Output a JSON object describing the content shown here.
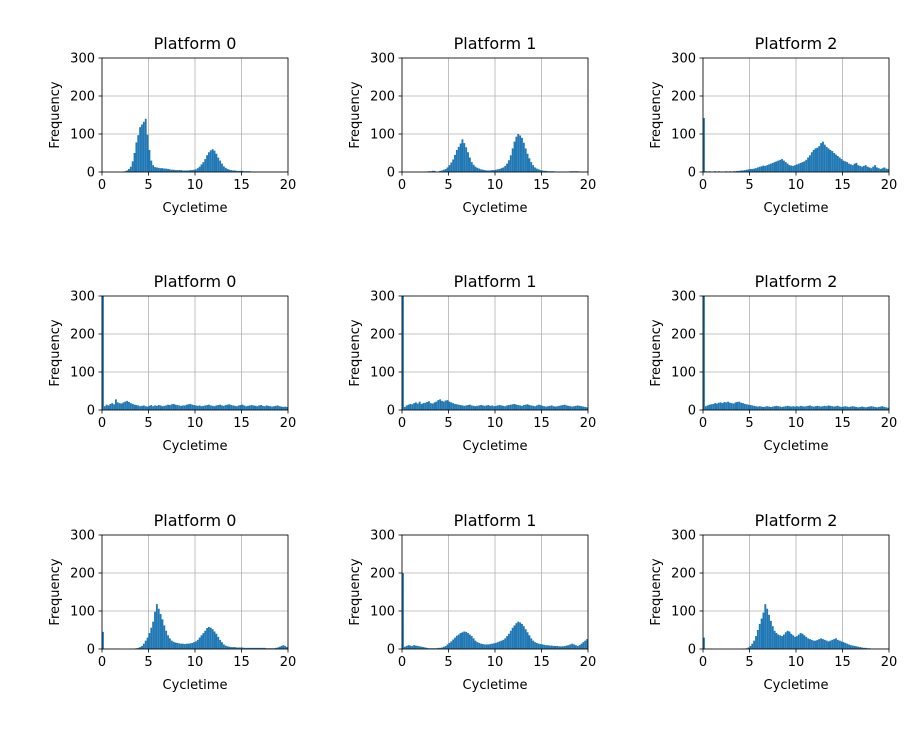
{
  "figure": {
    "rows": 3,
    "cols": 3,
    "bar_color": "#1f77b4"
  },
  "chart_data": [
    {
      "type": "bar",
      "title": "Platform 0",
      "xlabel": "Cycletime",
      "ylabel": "Frequency",
      "xlim": [
        0,
        20
      ],
      "ylim": [
        0,
        300
      ],
      "xticks": [
        0,
        5,
        10,
        15,
        20
      ],
      "yticks": [
        0,
        100,
        200,
        300
      ],
      "grid": true,
      "bin_width": 0.2,
      "values": [
        0,
        0,
        0,
        0,
        0,
        0,
        0,
        0,
        0,
        0,
        0,
        1,
        2,
        4,
        8,
        14,
        28,
        50,
        78,
        97,
        118,
        125,
        132,
        140,
        98,
        58,
        30,
        18,
        13,
        12,
        11,
        10,
        10,
        9,
        9,
        8,
        7,
        6,
        6,
        5,
        5,
        5,
        5,
        4,
        4,
        4,
        4,
        5,
        5,
        6,
        7,
        10,
        14,
        20,
        26,
        34,
        44,
        52,
        57,
        60,
        56,
        48,
        38,
        30,
        22,
        15,
        11,
        8,
        6,
        5,
        4,
        4,
        3,
        3,
        3,
        3,
        2,
        2,
        2,
        2,
        1,
        1,
        1,
        1,
        1,
        1,
        1,
        1,
        1,
        1,
        1,
        1,
        1,
        1,
        1,
        1,
        1,
        1,
        1,
        1
      ]
    },
    {
      "type": "bar",
      "title": "Platform 1",
      "xlabel": "Cycletime",
      "ylabel": "Frequency",
      "xlim": [
        0,
        20
      ],
      "ylim": [
        0,
        300
      ],
      "xticks": [
        0,
        5,
        10,
        15,
        20
      ],
      "yticks": [
        0,
        100,
        200,
        300
      ],
      "grid": true,
      "bin_width": 0.2,
      "values": [
        0,
        0,
        0,
        0,
        0,
        0,
        0,
        0,
        0,
        0,
        0,
        0,
        1,
        1,
        2,
        2,
        3,
        3,
        1,
        1,
        3,
        4,
        6,
        8,
        12,
        18,
        25,
        33,
        45,
        58,
        66,
        75,
        86,
        76,
        65,
        52,
        38,
        26,
        19,
        14,
        11,
        9,
        7,
        6,
        5,
        4,
        4,
        4,
        5,
        5,
        6,
        7,
        8,
        10,
        12,
        16,
        22,
        31,
        44,
        62,
        80,
        93,
        100,
        96,
        90,
        77,
        62,
        48,
        36,
        26,
        18,
        12,
        9,
        7,
        5,
        4,
        3,
        3,
        2,
        2,
        2,
        2,
        1,
        1,
        1,
        1,
        1,
        1,
        1,
        1,
        2,
        2,
        2,
        2,
        2,
        1,
        1,
        1,
        1,
        1
      ]
    },
    {
      "type": "bar",
      "title": "Platform 2",
      "xlabel": "Cycletime",
      "ylabel": "Frequency",
      "xlim": [
        0,
        20
      ],
      "ylim": [
        0,
        300
      ],
      "xticks": [
        0,
        5,
        10,
        15,
        20
      ],
      "yticks": [
        0,
        100,
        200,
        300
      ],
      "grid": true,
      "bin_width": 0.2,
      "values": [
        142,
        2,
        1,
        2,
        1,
        1,
        2,
        1,
        2,
        1,
        1,
        1,
        2,
        1,
        2,
        1,
        2,
        2,
        3,
        3,
        4,
        4,
        5,
        6,
        7,
        8,
        8,
        9,
        10,
        12,
        14,
        15,
        17,
        16,
        18,
        20,
        22,
        24,
        26,
        28,
        30,
        32,
        34,
        30,
        26,
        22,
        18,
        17,
        16,
        18,
        20,
        22,
        24,
        26,
        28,
        32,
        38,
        44,
        52,
        58,
        62,
        64,
        68,
        76,
        80,
        72,
        66,
        62,
        58,
        55,
        50,
        46,
        42,
        38,
        34,
        30,
        28,
        26,
        22,
        20,
        18,
        22,
        24,
        18,
        16,
        14,
        16,
        18,
        14,
        12,
        10,
        14,
        18,
        12,
        10,
        8,
        10,
        12,
        9,
        8
      ]
    },
    {
      "type": "bar",
      "title": "Platform 0",
      "xlabel": "Cycletime",
      "ylabel": "Frequency",
      "xlim": [
        0,
        20
      ],
      "ylim": [
        0,
        300
      ],
      "xticks": [
        0,
        5,
        10,
        15,
        20
      ],
      "yticks": [
        0,
        100,
        200,
        300
      ],
      "grid": true,
      "bin_width": 0.2,
      "values": [
        300,
        10,
        14,
        12,
        16,
        18,
        15,
        28,
        20,
        18,
        17,
        20,
        22,
        24,
        21,
        18,
        16,
        14,
        13,
        12,
        10,
        11,
        12,
        10,
        9,
        11,
        13,
        10,
        12,
        11,
        13,
        12,
        10,
        11,
        12,
        14,
        13,
        15,
        16,
        14,
        13,
        12,
        11,
        12,
        12,
        14,
        15,
        16,
        14,
        13,
        12,
        11,
        12,
        10,
        11,
        12,
        13,
        14,
        12,
        11,
        10,
        12,
        13,
        14,
        12,
        11,
        13,
        14,
        15,
        13,
        12,
        11,
        10,
        12,
        13,
        14,
        12,
        10,
        11,
        12,
        13,
        12,
        11,
        10,
        12,
        13,
        11,
        10,
        12,
        11,
        10,
        9,
        10,
        11,
        12,
        10,
        9,
        8,
        9,
        8
      ]
    },
    {
      "type": "bar",
      "title": "Platform 1",
      "xlabel": "Cycletime",
      "ylabel": "Frequency",
      "xlim": [
        0,
        20
      ],
      "ylim": [
        0,
        300
      ],
      "xticks": [
        0,
        5,
        10,
        15,
        20
      ],
      "yticks": [
        0,
        100,
        200,
        300
      ],
      "grid": true,
      "bin_width": 0.2,
      "values": [
        300,
        8,
        12,
        14,
        16,
        15,
        18,
        20,
        17,
        22,
        16,
        18,
        19,
        21,
        23,
        18,
        17,
        20,
        22,
        26,
        28,
        24,
        22,
        25,
        26,
        22,
        20,
        18,
        16,
        15,
        14,
        13,
        12,
        11,
        12,
        13,
        14,
        12,
        11,
        10,
        11,
        12,
        13,
        12,
        11,
        12,
        13,
        11,
        12,
        10,
        11,
        12,
        13,
        12,
        11,
        10,
        12,
        13,
        14,
        15,
        16,
        14,
        13,
        12,
        11,
        13,
        14,
        15,
        13,
        12,
        11,
        10,
        12,
        14,
        13,
        11,
        10,
        9,
        10,
        11,
        12,
        10,
        9,
        10,
        11,
        12,
        13,
        14,
        12,
        11,
        10,
        9,
        10,
        11,
        12,
        11,
        10,
        9,
        8,
        7
      ]
    },
    {
      "type": "bar",
      "title": "Platform 2",
      "xlabel": "Cycletime",
      "ylabel": "Frequency",
      "xlim": [
        0,
        20
      ],
      "ylim": [
        0,
        300
      ],
      "xticks": [
        0,
        5,
        10,
        15,
        20
      ],
      "yticks": [
        0,
        100,
        200,
        300
      ],
      "grid": true,
      "bin_width": 0.2,
      "values": [
        300,
        10,
        12,
        14,
        15,
        16,
        18,
        17,
        19,
        20,
        18,
        21,
        20,
        22,
        19,
        18,
        17,
        20,
        21,
        22,
        19,
        18,
        16,
        15,
        14,
        13,
        12,
        11,
        10,
        9,
        10,
        9,
        8,
        9,
        10,
        9,
        8,
        9,
        10,
        11,
        10,
        9,
        8,
        9,
        10,
        11,
        10,
        9,
        10,
        9,
        10,
        9,
        11,
        10,
        9,
        10,
        11,
        12,
        10,
        9,
        10,
        11,
        10,
        9,
        10,
        11,
        10,
        12,
        11,
        10,
        9,
        10,
        11,
        9,
        8,
        9,
        10,
        9,
        8,
        9,
        10,
        9,
        8,
        7,
        8,
        9,
        8,
        7,
        8,
        9,
        10,
        9,
        8,
        7,
        8,
        9,
        10,
        8,
        7,
        6
      ]
    },
    {
      "type": "bar",
      "title": "Platform 0",
      "xlabel": "Cycletime",
      "ylabel": "Frequency",
      "xlim": [
        0,
        20
      ],
      "ylim": [
        0,
        300
      ],
      "xticks": [
        0,
        5,
        10,
        15,
        20
      ],
      "yticks": [
        0,
        100,
        200,
        300
      ],
      "grid": true,
      "bin_width": 0.2,
      "values": [
        45,
        1,
        1,
        1,
        1,
        1,
        1,
        1,
        1,
        0,
        0,
        0,
        0,
        0,
        0,
        1,
        1,
        1,
        2,
        3,
        5,
        8,
        14,
        22,
        30,
        42,
        56,
        72,
        98,
        118,
        106,
        92,
        78,
        62,
        48,
        36,
        28,
        22,
        19,
        17,
        16,
        15,
        14,
        14,
        13,
        14,
        14,
        15,
        16,
        18,
        20,
        24,
        30,
        36,
        42,
        48,
        55,
        58,
        56,
        52,
        46,
        40,
        32,
        24,
        18,
        12,
        9,
        7,
        6,
        5,
        5,
        5,
        4,
        4,
        4,
        4,
        3,
        3,
        3,
        3,
        3,
        3,
        3,
        3,
        3,
        3,
        3,
        3,
        2,
        2,
        2,
        2,
        2,
        3,
        4,
        6,
        8,
        10,
        8,
        5
      ]
    },
    {
      "type": "bar",
      "title": "Platform 1",
      "xlabel": "Cycletime",
      "ylabel": "Frequency",
      "xlim": [
        0,
        20
      ],
      "ylim": [
        0,
        300
      ],
      "xticks": [
        0,
        5,
        10,
        15,
        20
      ],
      "yticks": [
        0,
        100,
        200,
        300
      ],
      "grid": true,
      "bin_width": 0.2,
      "values": [
        200,
        6,
        8,
        10,
        9,
        8,
        10,
        9,
        8,
        7,
        6,
        5,
        4,
        3,
        2,
        2,
        2,
        2,
        2,
        3,
        3,
        4,
        6,
        8,
        12,
        16,
        20,
        25,
        30,
        35,
        38,
        42,
        44,
        46,
        45,
        42,
        38,
        34,
        28,
        22,
        18,
        16,
        14,
        13,
        12,
        12,
        12,
        13,
        14,
        15,
        16,
        18,
        20,
        22,
        24,
        28,
        34,
        40,
        48,
        56,
        62,
        68,
        72,
        70,
        66,
        60,
        52,
        44,
        36,
        28,
        22,
        18,
        16,
        14,
        13,
        12,
        11,
        10,
        10,
        9,
        9,
        8,
        8,
        8,
        7,
        7,
        7,
        8,
        9,
        10,
        12,
        14,
        12,
        10,
        8,
        10,
        14,
        18,
        22,
        26
      ]
    },
    {
      "type": "bar",
      "title": "Platform 2",
      "xlabel": "Cycletime",
      "ylabel": "Frequency",
      "xlim": [
        0,
        20
      ],
      "ylim": [
        0,
        300
      ],
      "xticks": [
        0,
        5,
        10,
        15,
        20
      ],
      "yticks": [
        0,
        100,
        200,
        300
      ],
      "grid": true,
      "bin_width": 0.2,
      "values": [
        30,
        1,
        1,
        1,
        1,
        0,
        0,
        0,
        0,
        0,
        0,
        0,
        0,
        0,
        0,
        0,
        0,
        0,
        0,
        0,
        0,
        1,
        1,
        2,
        4,
        8,
        14,
        22,
        34,
        50,
        66,
        80,
        96,
        118,
        106,
        90,
        74,
        60,
        48,
        42,
        38,
        36,
        34,
        38,
        44,
        48,
        46,
        40,
        36,
        32,
        34,
        38,
        42,
        40,
        36,
        32,
        28,
        26,
        24,
        22,
        22,
        24,
        26,
        28,
        26,
        24,
        22,
        20,
        22,
        24,
        26,
        28,
        24,
        22,
        20,
        18,
        16,
        14,
        12,
        10,
        9,
        8,
        7,
        6,
        5,
        4,
        3,
        3,
        2,
        2,
        1,
        1,
        1,
        1,
        1,
        1,
        1,
        1,
        1,
        1
      ]
    }
  ]
}
